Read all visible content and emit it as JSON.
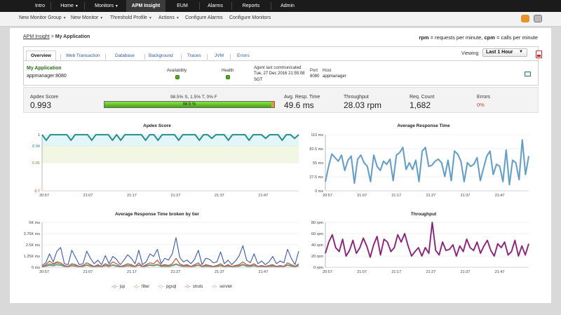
{
  "top_tabs": [
    "Intro",
    "Home",
    "Monitors",
    "APM Insight",
    "EUM",
    "Alarms",
    "Reports",
    "Admin"
  ],
  "active_tab": "APM Insight",
  "subnav": [
    {
      "label": "New Monitor Group",
      "dropdown": true
    },
    {
      "label": "New Monitor",
      "dropdown": true
    },
    {
      "label": "Threshold Profile",
      "dropdown": true
    },
    {
      "label": "Actions",
      "dropdown": true
    },
    {
      "label": "Configure Alarms",
      "dropdown": false
    },
    {
      "label": "Configure Monitors",
      "dropdown": false
    }
  ],
  "breadcrumb": {
    "parent": "APM Insight",
    "separator": ">",
    "current": "My Application"
  },
  "legend_note": {
    "rpm_key": "rpm",
    "rpm_text": " = requests per minute, ",
    "cpm_key": "cpm",
    "cpm_text": " = calls per minute"
  },
  "detail_tabs": [
    "Overview",
    "Web Transaction",
    "Database",
    "Background",
    "Traces",
    "JVM",
    "Errors"
  ],
  "active_detail_tab": "Overview",
  "viewing": {
    "label": "Viewing",
    "value": "Last 1 Hour"
  },
  "app": {
    "name": "My Application",
    "host_port": "appmanager:8080",
    "availability_label": "Availability",
    "health_label": "Health",
    "agent_label": "Agent last communicated",
    "agent_time": "Tue, 27 Dec 2016 21:55:08",
    "agent_tz": "SGT",
    "port_label": "Port",
    "port_value": "8080",
    "host_label": "Host",
    "host_value": "appmanager"
  },
  "metrics": {
    "apdex_label": "Apdex Score",
    "apdex_value": "0.993",
    "apdex_breakdown": "98.5% S, 1.5% T, 0% F",
    "apdex_bar_text": "98.5 %",
    "apdex_satisfied_pct": 98.5,
    "apdex_tolerating_pct": 1.5,
    "resp_label": "Avg. Resp. Time",
    "resp_value": "49.6 ms",
    "throughput_label": "Throughput",
    "throughput_value": "28.03 rpm",
    "req_label": "Req. Count",
    "req_value": "1,682",
    "errors_label": "Errors",
    "errors_value": "0%"
  },
  "colors": {
    "apdex_line": "#1b8a8a",
    "resp_line": "#5a9ec8",
    "throughput_line": "#8a1f7a",
    "jsp": "#3a5aa8",
    "filter": "#6aa23a",
    "pgsql": "#7a9fc0",
    "struts": "#c0462a",
    "servlet": "#8a8a8a"
  },
  "chart_data": [
    {
      "type": "line",
      "title": "Apdex Score",
      "x_ticks": [
        "20:57",
        "21:07",
        "21:17",
        "21:27",
        "21:37",
        "21:47"
      ],
      "y_ticks": [
        "1",
        "0.94",
        "0.85",
        "0.7"
      ],
      "ylim": [
        0.7,
        1
      ],
      "bands": [
        {
          "from": 0.94,
          "to": 1,
          "color": "#e2f6f8"
        },
        {
          "from": 0.85,
          "to": 0.94,
          "color": "#f1f7e2"
        }
      ],
      "series": [
        {
          "values": [
            1,
            0.97,
            1,
            1,
            1,
            1,
            1,
            0.97,
            1,
            1,
            1,
            1,
            0.97,
            1,
            1,
            1,
            1,
            0.97,
            1,
            0.97,
            1,
            1,
            1,
            1,
            1,
            0.97,
            1,
            1,
            0.97,
            1,
            1,
            1,
            1,
            0.97,
            1,
            1,
            1,
            1,
            0.97,
            1,
            1,
            0.98,
            1,
            1,
            1,
            0.97,
            1,
            1,
            1,
            1,
            0.97,
            1,
            1,
            1,
            0.98,
            1,
            1,
            1,
            0.97,
            1,
            1,
            0.98,
            1
          ]
        }
      ]
    },
    {
      "type": "line",
      "title": "Average Response Time",
      "x_ticks": [
        "20:57",
        "21:07",
        "21:17",
        "21:27",
        "21:37",
        "21:47"
      ],
      "y_ticks": [
        "110 ms",
        "82.5 ms",
        "55 ms",
        "27.5 ms",
        "0 ms"
      ],
      "ylim": [
        0,
        110
      ],
      "series": [
        {
          "values": [
            18,
            48,
            72,
            65,
            58,
            70,
            40,
            60,
            68,
            15,
            62,
            70,
            55,
            48,
            18,
            70,
            48,
            40,
            58,
            52,
            62,
            20,
            70,
            75,
            85,
            42,
            55,
            42,
            60,
            18,
            78,
            85,
            48,
            50,
            58,
            62,
            55,
            28,
            60,
            20,
            78,
            72,
            58,
            18,
            55,
            48,
            52,
            65,
            20,
            45,
            68,
            78,
            32,
            52,
            48,
            18,
            80,
            12,
            60,
            55,
            22,
            100,
            32,
            68
          ]
        }
      ]
    },
    {
      "type": "line",
      "title": "Average Response Time broken by tier",
      "x_ticks": [
        "20:57",
        "21:07",
        "21:17",
        "21:27",
        "21:37",
        "21:47"
      ],
      "y_ticks": [
        "5K ms",
        "3.75K ms",
        "2.5K ms",
        "1.25K ms",
        "0 ms"
      ],
      "ylim": [
        0,
        5000
      ],
      "legend": [
        "jsp",
        "filter",
        "pgsql",
        "struts",
        "servlet"
      ],
      "series": [
        {
          "name": "jsp",
          "values": [
            200,
            500,
            1500,
            600,
            1800,
            2200,
            400,
            300,
            1900,
            1100,
            300,
            400,
            1800,
            1000,
            400,
            800,
            300,
            1300,
            400,
            1200,
            900,
            300,
            800,
            1400,
            1000,
            400,
            1900,
            300,
            600,
            1500,
            1200,
            2000,
            400,
            1000,
            800,
            1500,
            3300,
            1100,
            600,
            800,
            400,
            900,
            1900,
            300,
            1000,
            900,
            500,
            600,
            1700,
            400,
            800,
            300,
            700,
            1300,
            2400,
            800,
            500,
            1500,
            400,
            700,
            300,
            600,
            1200,
            400,
            700,
            500,
            2000,
            1000,
            300,
            1800
          ]
        },
        {
          "name": "filter",
          "values": [
            100,
            200,
            400,
            300,
            500,
            350,
            150,
            100,
            250,
            200,
            100,
            150,
            300,
            200,
            100,
            200,
            100,
            250,
            150,
            300,
            200,
            100,
            150,
            250,
            200,
            100,
            300,
            100,
            200,
            300,
            250,
            350,
            150,
            200,
            150,
            250,
            400,
            250,
            150,
            200,
            100,
            200,
            300,
            100,
            200,
            150,
            100,
            150,
            250,
            100,
            200,
            100,
            150,
            200,
            350,
            200,
            150,
            250,
            100,
            150,
            100,
            150,
            200,
            100,
            150,
            100,
            300,
            200,
            100,
            250
          ]
        },
        {
          "name": "pgsql",
          "values": [
            80,
            150,
            300,
            200,
            350,
            250,
            100,
            80,
            200,
            150,
            80,
            100,
            250,
            150,
            80,
            150,
            80,
            200,
            100,
            250,
            150,
            80,
            100,
            200,
            150,
            80,
            250,
            80,
            150,
            250,
            200,
            300,
            100,
            150,
            100,
            200,
            350,
            200,
            100,
            150,
            80,
            150,
            250,
            80,
            150,
            100,
            80,
            100,
            200,
            80,
            150,
            80,
            100,
            150,
            300,
            150,
            100,
            200,
            80,
            100,
            80,
            100,
            150,
            80,
            100,
            80,
            250,
            150,
            80,
            200
          ]
        },
        {
          "name": "struts",
          "values": [
            60,
            300,
            700,
            400,
            600,
            500,
            200,
            100,
            400,
            300,
            100,
            200,
            500,
            300,
            100,
            300,
            100,
            400,
            200,
            600,
            400,
            100,
            200,
            400,
            300,
            100,
            500,
            100,
            300,
            500,
            400,
            800,
            200,
            300,
            200,
            400,
            1000,
            400,
            200,
            300,
            100,
            300,
            500,
            100,
            300,
            200,
            100,
            200,
            400,
            100,
            300,
            100,
            200,
            300,
            600,
            300,
            200,
            400,
            100,
            200,
            100,
            200,
            300,
            100,
            200,
            100,
            500,
            300,
            100,
            400
          ]
        },
        {
          "name": "servlet",
          "values": [
            40,
            100,
            200,
            150,
            250,
            200,
            80,
            60,
            150,
            100,
            60,
            80,
            200,
            100,
            60,
            100,
            60,
            150,
            80,
            200,
            100,
            60,
            80,
            150,
            100,
            60,
            200,
            60,
            100,
            200,
            150,
            250,
            80,
            100,
            80,
            150,
            300,
            150,
            80,
            100,
            60,
            100,
            200,
            60,
            100,
            80,
            60,
            80,
            150,
            60,
            100,
            60,
            80,
            100,
            250,
            100,
            80,
            150,
            60,
            80,
            60,
            80,
            100,
            60,
            80,
            60,
            200,
            100,
            60,
            150
          ]
        }
      ]
    },
    {
      "type": "line",
      "title": "Throughput",
      "x_ticks": [
        "20:57",
        "21:07",
        "21:17",
        "21:27",
        "21:37",
        "21:47"
      ],
      "y_ticks": [
        "80 rpm",
        "60 rpm",
        "40 rpm",
        "20 rpm",
        "0 rpm"
      ],
      "ylim": [
        0,
        80
      ],
      "series": [
        {
          "values": [
            25,
            45,
            58,
            35,
            28,
            50,
            20,
            30,
            48,
            25,
            35,
            52,
            38,
            18,
            40,
            55,
            22,
            50,
            45,
            28,
            35,
            58,
            45,
            60,
            38,
            20,
            28,
            35,
            20,
            35,
            25,
            80,
            30,
            22,
            45,
            30,
            32,
            40,
            20,
            38,
            28,
            50,
            35,
            30,
            45,
            25,
            38,
            48,
            30,
            20,
            42,
            35,
            45,
            22,
            28,
            48,
            20,
            38,
            22,
            42
          ]
        }
      ]
    }
  ]
}
